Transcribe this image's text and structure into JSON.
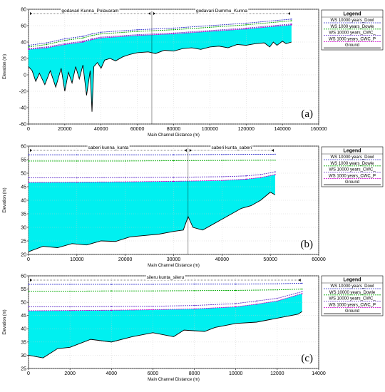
{
  "chart_data": [
    {
      "type": "line",
      "panel_label": "(a)",
      "xlabel": "Main Channel Distance  (m)",
      "ylabel": "Elevation (m)",
      "xlim": [
        0,
        160000
      ],
      "ylim": [
        -60,
        80
      ],
      "x_ticks": [
        0,
        20000,
        40000,
        60000,
        80000,
        100000,
        120000,
        140000,
        160000
      ],
      "y_ticks": [
        -60,
        -40,
        -20,
        0,
        20,
        40,
        60,
        80
      ],
      "grid": true,
      "legend": {
        "title": "Legend",
        "position": "right",
        "entries": [
          "WS  10000 years_Dowl",
          "WS  1000 years_Dowle",
          "WS  10000 years_CWC_",
          "WS  1000 years_CWC_P",
          "Ground"
        ]
      },
      "reaches": [
        {
          "label": "godavari Kunna_Polavaram",
          "x_start": 0,
          "x_end": 68000
        },
        {
          "label": "godavari Dummu_Kunna",
          "x_start": 68000,
          "x_end": 145000
        }
      ],
      "series": [
        {
          "name": "WS  10000 years_Dowl",
          "color": "#3333cc",
          "x": [
            0,
            10000,
            20000,
            30000,
            35000,
            40000,
            60000,
            80000,
            100000,
            120000,
            145000
          ],
          "y": [
            36,
            39,
            44,
            47,
            50,
            52,
            55,
            57,
            60,
            63,
            68
          ]
        },
        {
          "name": "WS  1000 years_Dowle",
          "color": "#00aa00",
          "x": [
            0,
            10000,
            20000,
            30000,
            35000,
            40000,
            60000,
            80000,
            100000,
            120000,
            145000
          ],
          "y": [
            34,
            37,
            42,
            45,
            48,
            50,
            53,
            55,
            58,
            61,
            66
          ]
        },
        {
          "name": "WS  10000 years_CWC_",
          "color": "#6633cc",
          "x": [
            0,
            10000,
            20000,
            30000,
            35000,
            40000,
            60000,
            80000,
            100000,
            120000,
            145000
          ],
          "y": [
            32,
            34,
            38,
            41,
            44,
            46,
            49,
            51,
            54,
            57,
            62
          ]
        },
        {
          "name": "WS  1000 years_CWC_P",
          "color": "#cc00cc",
          "x": [
            0,
            10000,
            20000,
            30000,
            35000,
            40000,
            60000,
            80000,
            100000,
            120000,
            145000
          ],
          "y": [
            31,
            33,
            37,
            40,
            43,
            45,
            48,
            50,
            53,
            56,
            61
          ]
        },
        {
          "name": "Ground",
          "color": "#000000",
          "x": [
            0,
            2000,
            4000,
            6000,
            9000,
            12000,
            15000,
            18000,
            20000,
            22000,
            24000,
            26000,
            28000,
            30000,
            32000,
            34000,
            35000,
            36000,
            38000,
            40000,
            42000,
            45000,
            48000,
            52000,
            56000,
            60000,
            66000,
            70000,
            75000,
            80000,
            85000,
            90000,
            95000,
            100000,
            105000,
            110000,
            115000,
            120000,
            125000,
            130000,
            133000,
            135000,
            137000,
            140000,
            142000,
            145000
          ],
          "y": [
            10,
            5,
            -8,
            2,
            -12,
            5,
            -15,
            8,
            -20,
            3,
            -10,
            10,
            -5,
            12,
            -25,
            5,
            -45,
            10,
            15,
            8,
            18,
            20,
            17,
            22,
            25,
            27,
            28,
            26,
            30,
            29,
            32,
            33,
            31,
            34,
            35,
            33,
            37,
            36,
            38,
            39,
            34,
            40,
            36,
            41,
            38,
            40
          ]
        }
      ]
    },
    {
      "type": "line",
      "panel_label": "(b)",
      "xlabel": "Main Channel Distance  (m)",
      "ylabel": "Elevation (m)",
      "xlim": [
        0,
        60000
      ],
      "ylim": [
        20,
        60
      ],
      "x_ticks": [
        0,
        10000,
        20000,
        30000,
        40000,
        50000,
        60000
      ],
      "y_ticks": [
        20,
        25,
        30,
        35,
        40,
        45,
        50,
        55,
        60
      ],
      "grid": true,
      "legend": {
        "title": "Legend",
        "position": "right",
        "entries": [
          "WS  10000 years_Dowl",
          "WS  1000 years_Dowle",
          "WS  10000 years_CWC_",
          "WS  1000 years_CWC_P",
          "Ground"
        ]
      },
      "reaches": [
        {
          "label": "saberi kunna_kunta",
          "x_start": 0,
          "x_end": 33000
        },
        {
          "label": "saberi kunta_saberi",
          "x_start": 33000,
          "x_end": 51000
        }
      ],
      "series": [
        {
          "name": "WS  10000 years_Dowl",
          "color": "#3333cc",
          "x": [
            0,
            10000,
            20000,
            30000,
            40000,
            51000
          ],
          "y": [
            56.8,
            56.8,
            56.8,
            56.8,
            56.9,
            57
          ]
        },
        {
          "name": "WS  1000 years_Dowle",
          "color": "#00aa00",
          "x": [
            0,
            10000,
            20000,
            30000,
            40000,
            51000
          ],
          "y": [
            54.5,
            54.5,
            54.5,
            54.6,
            54.7,
            54.8
          ]
        },
        {
          "name": "WS  10000 years_CWC_",
          "color": "#6633cc",
          "x": [
            0,
            10000,
            20000,
            30000,
            40000,
            45000,
            48000,
            51000
          ],
          "y": [
            48.3,
            48.3,
            48.4,
            48.5,
            48.7,
            49,
            49.5,
            50.5
          ]
        },
        {
          "name": "WS  1000 years_CWC_P",
          "color": "#cc00cc",
          "x": [
            0,
            10000,
            20000,
            30000,
            40000,
            45000,
            48000,
            51000
          ],
          "y": [
            46.6,
            46.7,
            46.8,
            47,
            47.3,
            47.8,
            48.4,
            49.5
          ]
        },
        {
          "name": "Ground",
          "color": "#000000",
          "x": [
            0,
            3000,
            6000,
            9000,
            12000,
            15000,
            18000,
            21000,
            24000,
            27000,
            30000,
            32000,
            33000,
            34000,
            36000,
            38000,
            40000,
            42000,
            44000,
            46000,
            48000,
            50000,
            51000
          ],
          "y": [
            21,
            23,
            22.5,
            24,
            23.5,
            25,
            24.8,
            26.5,
            27,
            27.5,
            28.5,
            29,
            34,
            30,
            29,
            31,
            33,
            35,
            37,
            38,
            40,
            43,
            42
          ]
        }
      ]
    },
    {
      "type": "line",
      "panel_label": "(c)",
      "xlabel": "Main Channel Distance  (m)",
      "ylabel": "Elevation (m)",
      "xlim": [
        0,
        14000
      ],
      "ylim": [
        25,
        60
      ],
      "x_ticks": [
        0,
        2000,
        4000,
        6000,
        8000,
        10000,
        12000,
        14000
      ],
      "y_ticks": [
        25,
        30,
        35,
        40,
        45,
        50,
        55,
        60
      ],
      "grid": true,
      "legend": {
        "title": "Legend",
        "position": "right",
        "entries": [
          "WS  10000 years_Dowl",
          "WS  10000 years_Dowle",
          "WS  10000 years_CWC_",
          "WS  1000 years_CWC_P",
          "Ground"
        ]
      },
      "reaches": [
        {
          "label": "sileru kunta_sileru",
          "x_start": 0,
          "x_end": 13200
        }
      ],
      "series": [
        {
          "name": "WS  10000 years_Dowl",
          "color": "#3333cc",
          "x": [
            0,
            2000,
            4000,
            6000,
            8000,
            10000,
            12000,
            13200
          ],
          "y": [
            56.8,
            56.8,
            56.8,
            56.8,
            56.9,
            56.9,
            57,
            57.2
          ]
        },
        {
          "name": "WS  10000 years_Dowle",
          "color": "#00aa00",
          "x": [
            0,
            2000,
            4000,
            6000,
            8000,
            10000,
            12000,
            13200
          ],
          "y": [
            54.2,
            54.2,
            54.3,
            54.3,
            54.4,
            54.5,
            54.7,
            55
          ]
        },
        {
          "name": "WS  10000 years_CWC_",
          "color": "#6633cc",
          "x": [
            0,
            2000,
            4000,
            6000,
            8000,
            10000,
            11000,
            12000,
            13200
          ],
          "y": [
            48.3,
            48.3,
            48.4,
            48.5,
            48.8,
            49.5,
            50.5,
            51.5,
            54
          ]
        },
        {
          "name": "WS  1000 years_CWC_P",
          "color": "#cc00cc",
          "x": [
            0,
            2000,
            4000,
            6000,
            8000,
            10000,
            11000,
            12000,
            13200
          ],
          "y": [
            46.8,
            46.9,
            47,
            47.2,
            47.5,
            48.3,
            49.3,
            50.5,
            53.3
          ]
        },
        {
          "name": "Ground",
          "color": "#000000",
          "x": [
            0,
            700,
            1400,
            2000,
            3000,
            4000,
            5000,
            6000,
            7000,
            7500,
            8500,
            9000,
            10000,
            11000,
            12000,
            13000,
            13200
          ],
          "y": [
            30,
            29,
            32.5,
            33,
            36,
            35,
            37,
            38.5,
            37,
            39.5,
            39,
            40.5,
            42,
            42.5,
            44,
            45.5,
            46.5
          ]
        }
      ]
    }
  ]
}
